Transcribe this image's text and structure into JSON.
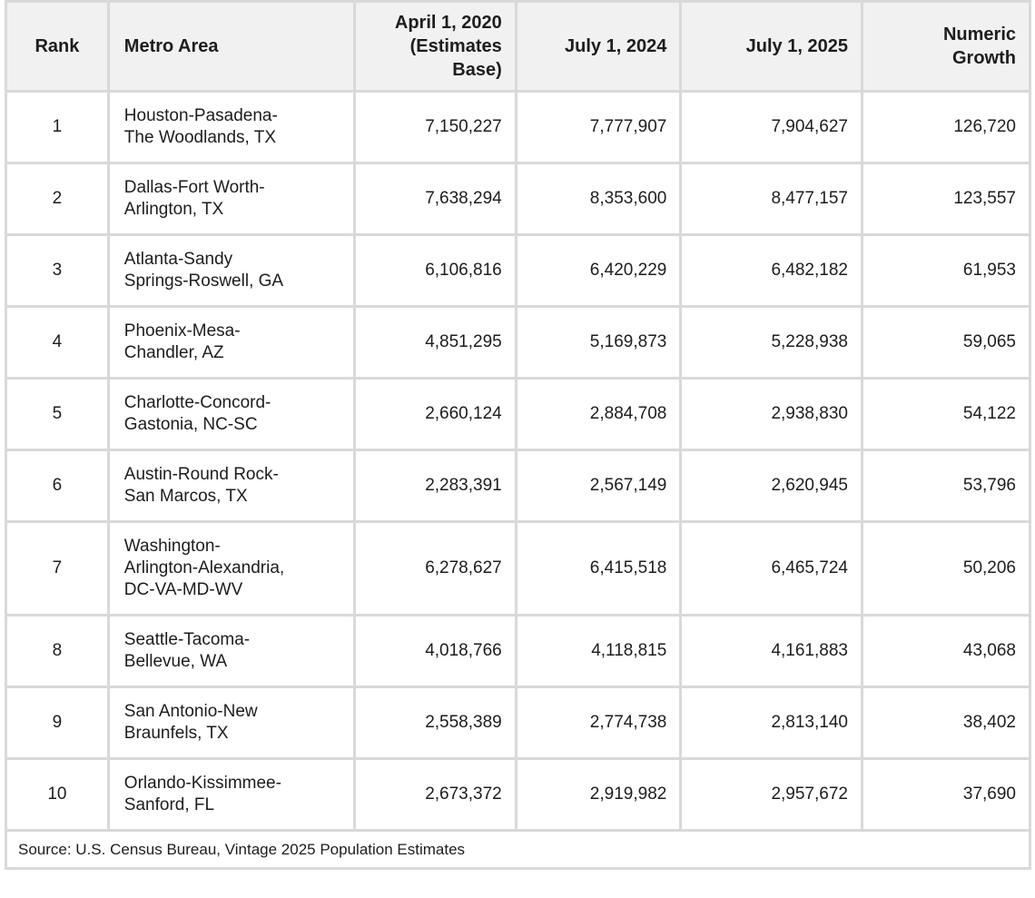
{
  "table": {
    "columns": [
      {
        "label": "Rank",
        "align": "center"
      },
      {
        "label": "Metro Area",
        "align": "left"
      },
      {
        "label": "April 1, 2020\n(Estimates\nBase)",
        "align": "right"
      },
      {
        "label": "July 1, 2024",
        "align": "right"
      },
      {
        "label": "July 1, 2025",
        "align": "right"
      },
      {
        "label": "Numeric\nGrowth",
        "align": "right"
      }
    ],
    "rows": [
      {
        "rank": "1",
        "metro": "Houston-Pasadena-\nThe Woodlands, TX",
        "base_2020": "7,150,227",
        "july_2024": "7,777,907",
        "july_2025": "7,904,627",
        "growth": "126,720"
      },
      {
        "rank": "2",
        "metro": "Dallas-Fort Worth-\nArlington, TX",
        "base_2020": "7,638,294",
        "july_2024": "8,353,600",
        "july_2025": "8,477,157",
        "growth": "123,557"
      },
      {
        "rank": "3",
        "metro": "Atlanta-Sandy\nSprings-Roswell, GA",
        "base_2020": "6,106,816",
        "july_2024": "6,420,229",
        "july_2025": "6,482,182",
        "growth": "61,953"
      },
      {
        "rank": "4",
        "metro": "Phoenix-Mesa-\nChandler, AZ",
        "base_2020": "4,851,295",
        "july_2024": "5,169,873",
        "july_2025": "5,228,938",
        "growth": "59,065"
      },
      {
        "rank": "5",
        "metro": "Charlotte-Concord-\nGastonia, NC-SC",
        "base_2020": "2,660,124",
        "july_2024": "2,884,708",
        "july_2025": "2,938,830",
        "growth": "54,122"
      },
      {
        "rank": "6",
        "metro": "Austin-Round Rock-\nSan Marcos, TX",
        "base_2020": "2,283,391",
        "july_2024": "2,567,149",
        "july_2025": "2,620,945",
        "growth": "53,796"
      },
      {
        "rank": "7",
        "metro": "Washington-\nArlington-Alexandria,\nDC-VA-MD-WV",
        "base_2020": "6,278,627",
        "july_2024": "6,415,518",
        "july_2025": "6,465,724",
        "growth": "50,206"
      },
      {
        "rank": "8",
        "metro": "Seattle-Tacoma-\nBellevue, WA",
        "base_2020": "4,018,766",
        "july_2024": "4,118,815",
        "july_2025": "4,161,883",
        "growth": "43,068"
      },
      {
        "rank": "9",
        "metro": "San Antonio-New\nBraunfels, TX",
        "base_2020": "2,558,389",
        "july_2024": "2,774,738",
        "july_2025": "2,813,140",
        "growth": "38,402"
      },
      {
        "rank": "10",
        "metro": "Orlando-Kissimmee-\nSanford, FL",
        "base_2020": "2,673,372",
        "july_2024": "2,919,982",
        "july_2025": "2,957,672",
        "growth": "37,690"
      }
    ],
    "source": "Source: U.S. Census Bureau, Vintage 2025 Population Estimates"
  }
}
